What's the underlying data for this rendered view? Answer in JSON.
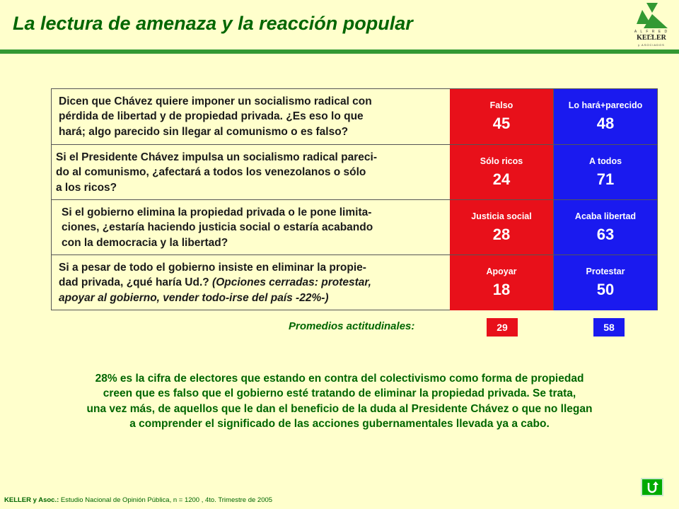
{
  "title": "La lectura de amenaza y la reacción popular",
  "logo": {
    "top": "A L F R E D O",
    "name": "KELLER",
    "bottom": "y ASOCIADOS"
  },
  "rows": [
    {
      "lines": [
        "Dicen que Chávez quiere imponer un socialismo radical con",
        "pérdida de libertad y de propiedad privada. ¿Es eso lo que",
        "hará; algo parecido sin llegar al comunismo o es falso?"
      ],
      "red": {
        "label": "Falso",
        "value": "45"
      },
      "blue": {
        "label": "Lo hará+parecido",
        "value": "48"
      }
    },
    {
      "lines": [
        "Si el Presidente Chávez impulsa un socialismo radical pareci-",
        "do al comunismo, ¿afectará a todos los venezolanos o sólo",
        "a los ricos?"
      ],
      "red": {
        "label": "Sólo ricos",
        "value": "24"
      },
      "blue": {
        "label": "A todos",
        "value": "71"
      }
    },
    {
      "lines": [
        "Si el gobierno elimina la propiedad privada o le pone limita-",
        "ciones, ¿estaría haciendo justicia social o estaría acabando",
        "con la democracia y la libertad?"
      ],
      "red": {
        "label": "Justicia social",
        "value": "28"
      },
      "blue": {
        "label": "Acaba libertad",
        "value": "63"
      }
    },
    {
      "line1": "Si a pesar de todo el gobierno insiste en eliminar la propie-",
      "line2a": "dad privada, ¿qué haría Ud.? ",
      "line2b": "(Opciones cerradas: protestar,",
      "line3": "apoyar al gobierno, vender todo-irse del país -22%-)",
      "red": {
        "label": "Apoyar",
        "value": "18"
      },
      "blue": {
        "label": "Protestar",
        "value": "50"
      }
    }
  ],
  "averages": {
    "label": "Promedios actitudinales:",
    "red": "29",
    "blue": "58"
  },
  "paragraph": [
    "28% es la cifra de electores que estando en contra del colectivismo como forma de propiedad",
    "creen que es falso que el gobierno esté tratando de eliminar la propiedad privada. Se trata,",
    "una vez más, de aquellos que le dan el beneficio de la duda al Presidente Chávez o que no llegan",
    "a comprender el significado de las acciones gubernamentales llevada ya a cabo."
  ],
  "footer": {
    "source": "KELLER y Asoc.:",
    "text": " Estudio Nacional de Opinión Pública, n = 1200 , 4to. Trimestre de 2005"
  },
  "nav_icon": "return-icon"
}
